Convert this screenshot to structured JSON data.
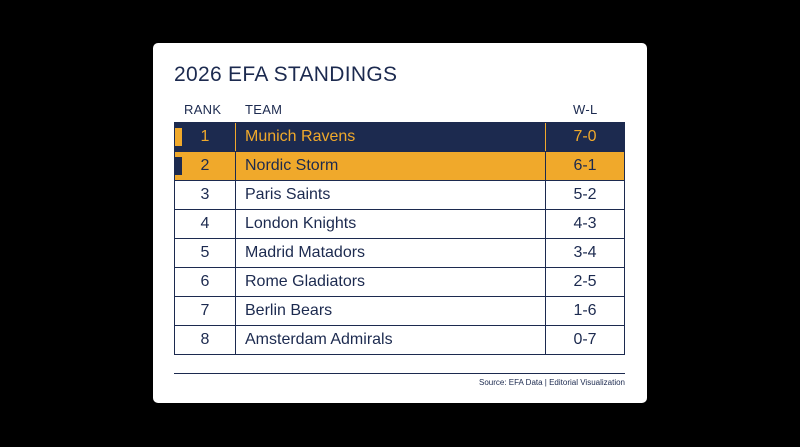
{
  "title": "2026 EFA STANDINGS",
  "columns": {
    "rank": "RANK",
    "team": "TEAM",
    "wl": "W-L"
  },
  "colors": {
    "navy": "#1c2a4f",
    "gold": "#f0a92b",
    "background": "#000000",
    "card": "#ffffff"
  },
  "rows": [
    {
      "rank": "1",
      "team": "Munich Ravens",
      "wl": "7-0"
    },
    {
      "rank": "2",
      "team": "Nordic Storm",
      "wl": "6-1"
    },
    {
      "rank": "3",
      "team": "Paris Saints",
      "wl": "5-2"
    },
    {
      "rank": "4",
      "team": "London Knights",
      "wl": "4-3"
    },
    {
      "rank": "5",
      "team": "Madrid Matadors",
      "wl": "3-4"
    },
    {
      "rank": "6",
      "team": "Rome Gladiators",
      "wl": "2-5"
    },
    {
      "rank": "7",
      "team": "Berlin Bears",
      "wl": "1-6"
    },
    {
      "rank": "8",
      "team": "Amsterdam Admirals",
      "wl": "0-7"
    }
  ],
  "source": "Source: EFA Data | Editorial Visualization"
}
